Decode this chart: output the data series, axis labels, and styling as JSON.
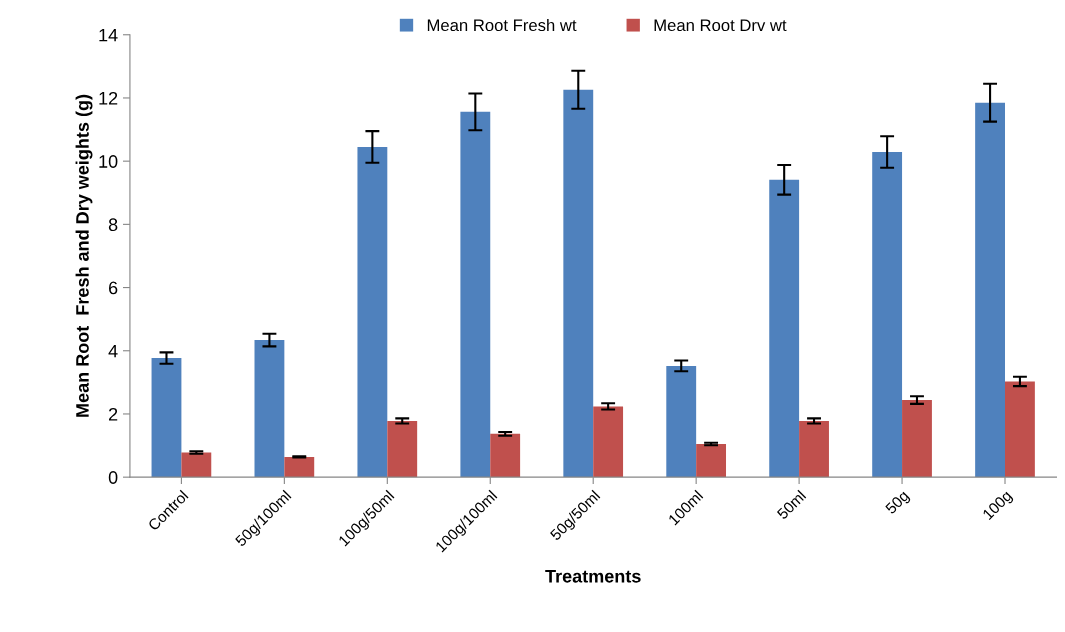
{
  "chart_data": {
    "type": "bar",
    "xlabel": "Treatments",
    "ylabel": "Mean Root  Fresh and Dry weights (g)",
    "categories": [
      "Control",
      "50g/100ml",
      "100g/50ml",
      "100g/100ml",
      "50g/50ml",
      "100ml",
      "50ml",
      "50g",
      "100g"
    ],
    "series": [
      {
        "name": "Mean Root Fresh wt",
        "color": "#4f81bd",
        "values": [
          3.77,
          4.34,
          10.45,
          11.56,
          12.26,
          3.52,
          9.41,
          10.29,
          11.85
        ],
        "errors": [
          0.18,
          0.2,
          0.5,
          0.58,
          0.6,
          0.17,
          0.47,
          0.5,
          0.6
        ]
      },
      {
        "name": "Mean Root Drv wt",
        "color": "#c0504d",
        "values": [
          0.78,
          0.64,
          1.78,
          1.37,
          2.24,
          1.05,
          1.78,
          2.44,
          3.03
        ],
        "errors": [
          0.04,
          0.02,
          0.08,
          0.06,
          0.1,
          0.04,
          0.08,
          0.12,
          0.15
        ]
      }
    ],
    "ylim": [
      0,
      14
    ],
    "yticks": [
      0,
      2,
      4,
      6,
      8,
      10,
      12,
      14
    ],
    "grid": false,
    "legend": "top"
  }
}
